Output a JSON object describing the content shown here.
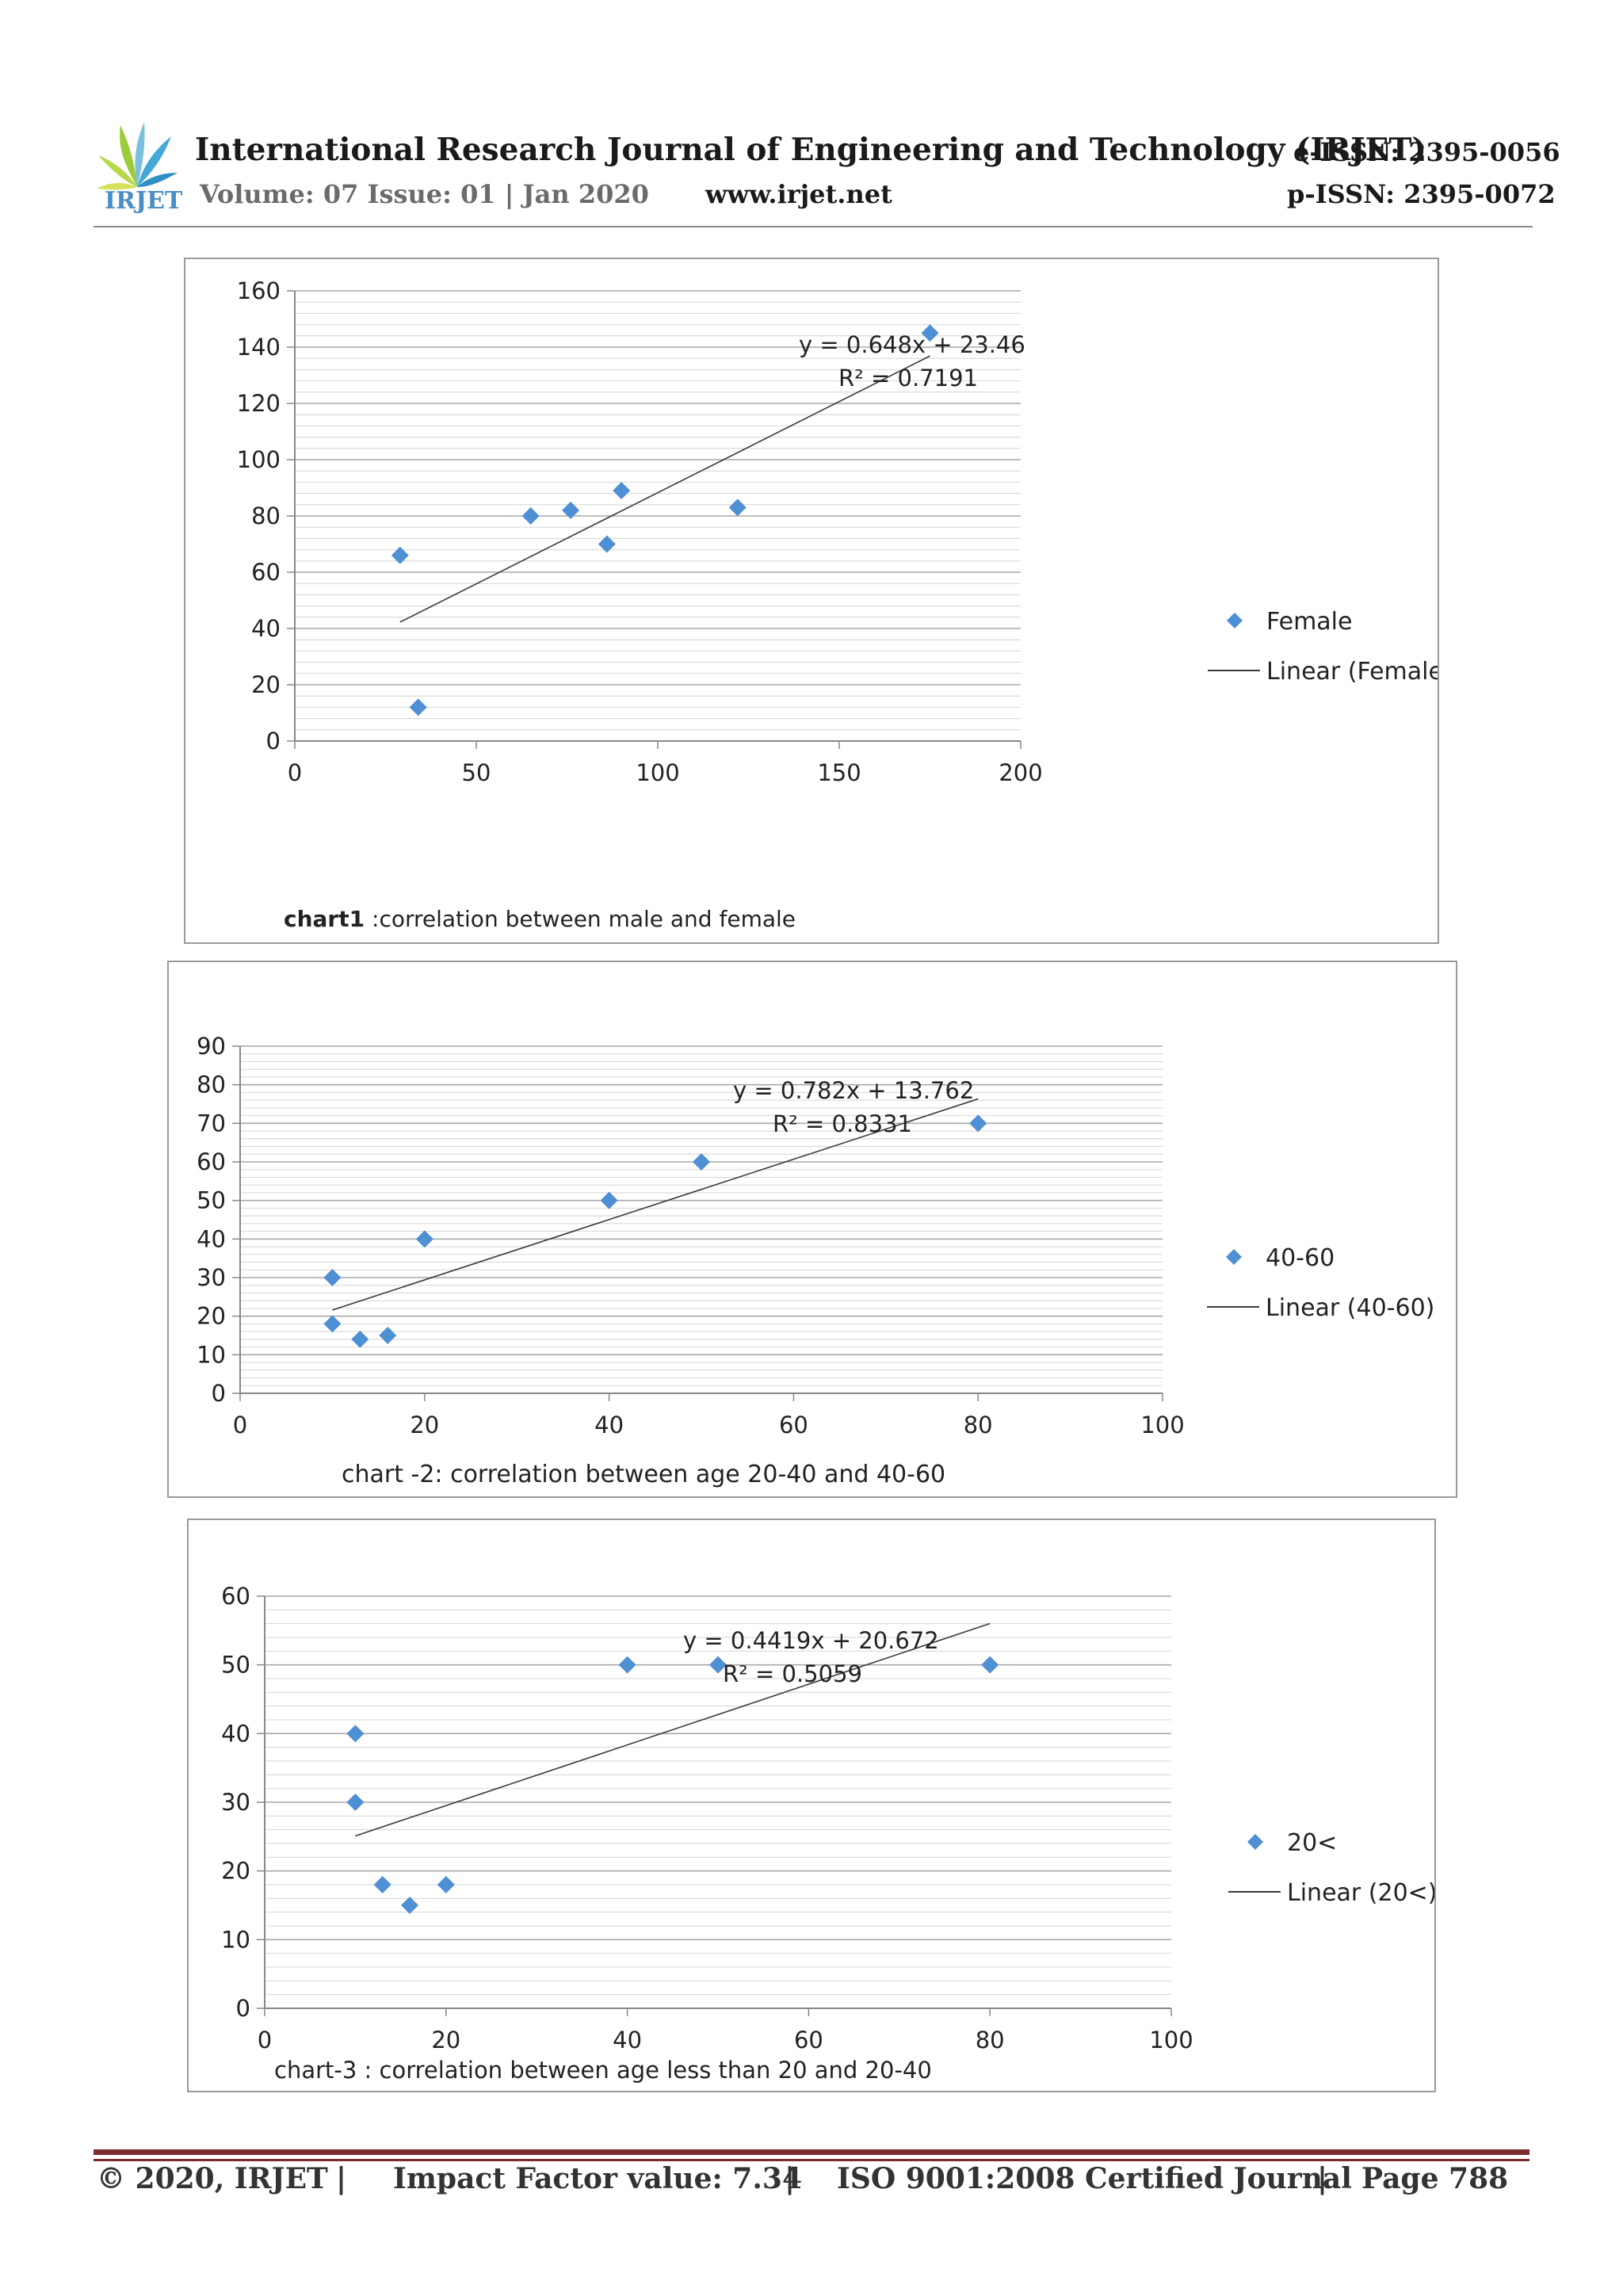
{
  "header": {
    "logo_text": "IRJET",
    "journal_title": "International Research Journal of Engineering and Technology (IRJET)",
    "volume": "Volume: 07 Issue: 01 | Jan 2020",
    "website": "www.irjet.net",
    "eissn": "e-ISSN: 2395-0056",
    "pissn": "p-ISSN: 2395-0072"
  },
  "chart_data": [
    {
      "type": "scatter",
      "caption_bold": "chart1",
      "caption": " :correlation between male and female",
      "x_ticks": [
        "0",
        "50",
        "100",
        "150",
        "200"
      ],
      "y_ticks": [
        "0",
        "20",
        "40",
        "60",
        "80",
        "100",
        "120",
        "140",
        "160"
      ],
      "xlim": [
        0,
        200
      ],
      "ylim": [
        0,
        160
      ],
      "grid": true,
      "legend_position": "right",
      "series": [
        {
          "name": "Female",
          "color": "#4f8fd4",
          "points": [
            [
              29,
              66
            ],
            [
              34,
              12
            ],
            [
              65,
              80
            ],
            [
              76,
              82
            ],
            [
              86,
              70
            ],
            [
              90,
              89
            ],
            [
              122,
              83
            ],
            [
              175,
              145
            ]
          ]
        }
      ],
      "trendline": {
        "name": "Linear (Female)",
        "slope": 0.648,
        "intercept": 23.46,
        "x_range": [
          29,
          175
        ],
        "equation": "y = 0.648x + 23.46",
        "r2": "R² = 0.7191"
      }
    },
    {
      "type": "scatter",
      "caption_bold": "",
      "caption": "chart -2: correlation between age 20-40 and 40-60",
      "x_ticks": [
        "0",
        "20",
        "40",
        "60",
        "80",
        "100"
      ],
      "y_ticks": [
        "0",
        "10",
        "20",
        "30",
        "40",
        "50",
        "60",
        "70",
        "80",
        "90"
      ],
      "xlim": [
        0,
        100
      ],
      "ylim": [
        0,
        90
      ],
      "grid": true,
      "legend_position": "right",
      "series": [
        {
          "name": "40-60",
          "color": "#4f8fd4",
          "points": [
            [
              10,
              30
            ],
            [
              10,
              18
            ],
            [
              13,
              14
            ],
            [
              16,
              15
            ],
            [
              20,
              40
            ],
            [
              40,
              50
            ],
            [
              50,
              60
            ],
            [
              80,
              70
            ]
          ]
        }
      ],
      "trendline": {
        "name": "Linear (40-60)",
        "slope": 0.782,
        "intercept": 13.762,
        "x_range": [
          10,
          80
        ],
        "equation": "y = 0.782x + 13.762",
        "r2": "R² = 0.8331"
      }
    },
    {
      "type": "scatter",
      "caption_bold": "",
      "caption": "chart-3 : correlation between age less than 20 and 20-40",
      "x_ticks": [
        "0",
        "20",
        "40",
        "60",
        "80",
        "100"
      ],
      "y_ticks": [
        "0",
        "10",
        "20",
        "30",
        "40",
        "50",
        "60"
      ],
      "xlim": [
        0,
        100
      ],
      "ylim": [
        0,
        60
      ],
      "grid": true,
      "legend_position": "right",
      "series": [
        {
          "name": "20<",
          "color": "#4f8fd4",
          "points": [
            [
              10,
              40
            ],
            [
              10,
              30
            ],
            [
              13,
              18
            ],
            [
              16,
              15
            ],
            [
              20,
              18
            ],
            [
              40,
              50
            ],
            [
              50,
              50
            ],
            [
              80,
              50
            ]
          ]
        }
      ],
      "trendline": {
        "name": "Linear (20<)",
        "slope": 0.4419,
        "intercept": 20.672,
        "x_range": [
          10,
          80
        ],
        "equation": "y = 0.4419x + 20.672",
        "r2": "R² = 0.5059"
      }
    }
  ],
  "footer": {
    "copyright": "© 2020, IRJET",
    "sep1": "|",
    "impact": "Impact Factor value: 7.34",
    "sep2": "|",
    "iso": "ISO 9001:2008 Certified Journal",
    "sep3": "|",
    "page": "Page 788"
  }
}
